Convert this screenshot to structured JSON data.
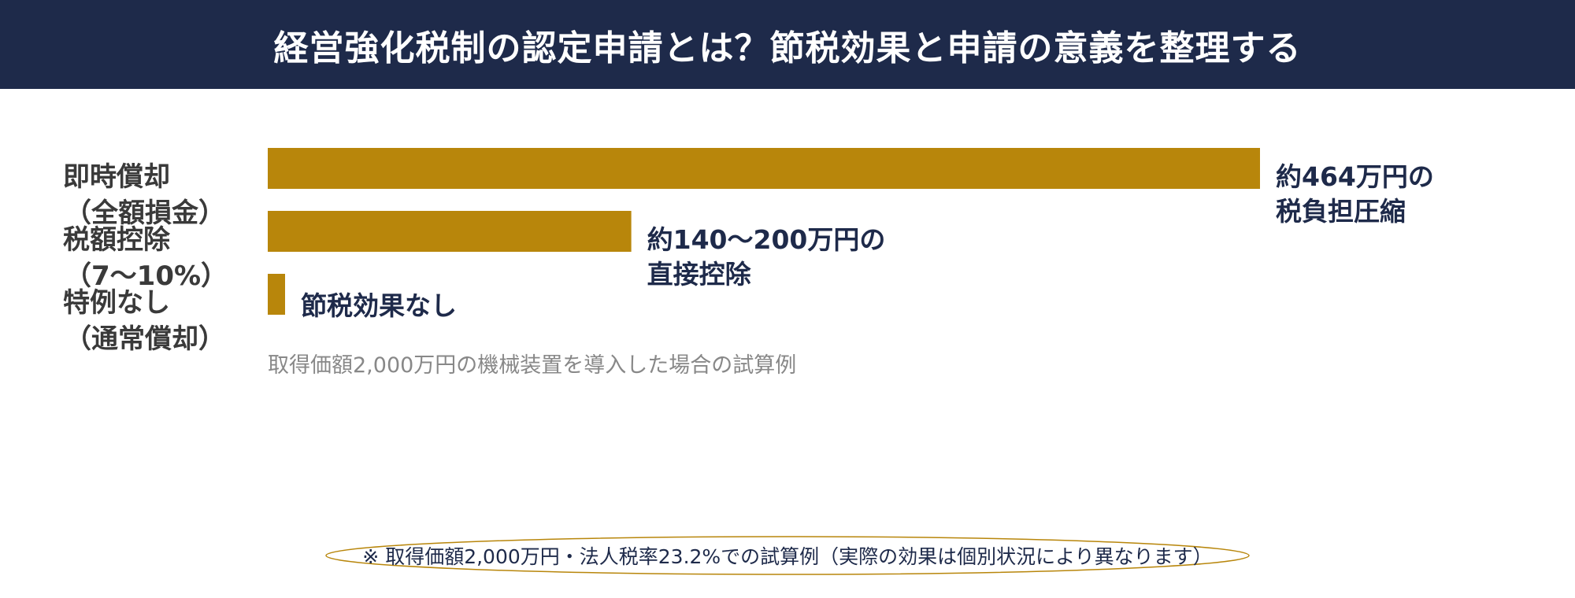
{
  "header": {
    "title": "経営強化税制の認定申請とは？節税効果と申請の意義を整理する"
  },
  "chart_data": {
    "type": "bar",
    "orientation": "horizontal",
    "categories": [
      {
        "line1": "即時償却",
        "line2": "（全額損金）"
      },
      {
        "line1": "税額控除",
        "line2": "（7～10%）"
      },
      {
        "line1": "特例なし",
        "line2": "（通常償却）"
      }
    ],
    "values": [
      464,
      170,
      0
    ],
    "bar_labels": [
      {
        "line1": "約464万円の",
        "line2": "税負担圧縮"
      },
      {
        "line1": "約140～200万円の",
        "line2": "直接控除"
      },
      {
        "line1": "節税効果なし",
        "line2": ""
      }
    ],
    "bar_color": "#b8860b",
    "label_color": "#1e2a4a",
    "caption": "取得価額2,000万円の機械装置を導入した場合の試算例"
  },
  "footnote": {
    "text": "※ 取得価額2,000万円・法人税率23.2%での試算例（実際の効果は個別状況により異なります）"
  }
}
